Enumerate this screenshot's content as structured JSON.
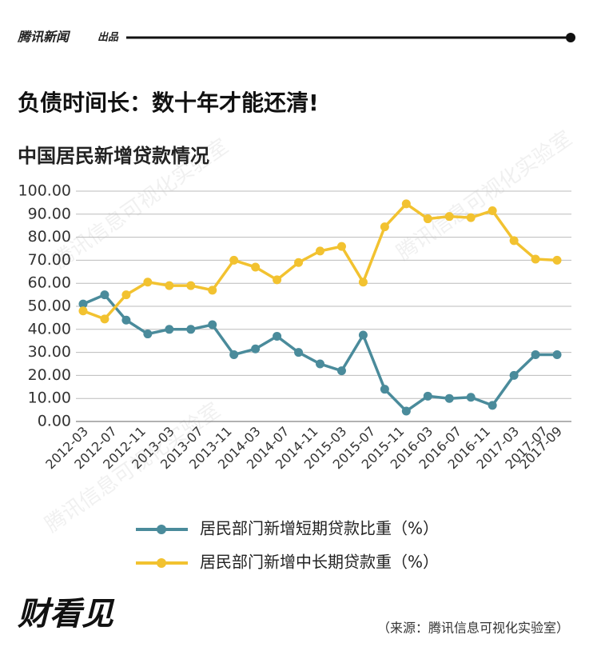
{
  "header": {
    "brand": "腾讯新闻",
    "tag": "出品"
  },
  "chart_data": {
    "type": "line",
    "title": "负债时间长：数十年才能还清!",
    "subtitle": "中国居民新增贷款情况",
    "x": [
      0,
      3,
      6,
      9,
      12,
      15,
      18,
      21,
      24,
      27,
      30,
      33,
      36,
      39,
      42,
      45,
      48,
      51,
      54,
      57,
      60,
      63,
      66
    ],
    "xlim": [
      -1,
      68
    ],
    "xticks": [
      {
        "value": 0,
        "label": "2012-03"
      },
      {
        "value": 4,
        "label": "2012-07"
      },
      {
        "value": 8,
        "label": "2012-11"
      },
      {
        "value": 12,
        "label": "2013-03"
      },
      {
        "value": 16,
        "label": "2013-07"
      },
      {
        "value": 20,
        "label": "2013-11"
      },
      {
        "value": 24,
        "label": "2014-03"
      },
      {
        "value": 28,
        "label": "2014-07"
      },
      {
        "value": 32,
        "label": "2014-11"
      },
      {
        "value": 36,
        "label": "2015-03"
      },
      {
        "value": 40,
        "label": "2015-07"
      },
      {
        "value": 44,
        "label": "2015-11"
      },
      {
        "value": 48,
        "label": "2016-03"
      },
      {
        "value": 52,
        "label": "2016-07"
      },
      {
        "value": 56,
        "label": "2016-11"
      },
      {
        "value": 60,
        "label": "2017-03"
      },
      {
        "value": 64,
        "label": "2017-07"
      },
      {
        "value": 66,
        "label": "2017-09"
      }
    ],
    "ylim": [
      0,
      100
    ],
    "yticks": [
      {
        "value": 0,
        "label": "0.00"
      },
      {
        "value": 10,
        "label": "10.00"
      },
      {
        "value": 20,
        "label": "20.00"
      },
      {
        "value": 30,
        "label": "30.00"
      },
      {
        "value": 40,
        "label": "40.00"
      },
      {
        "value": 50,
        "label": "50.00"
      },
      {
        "value": 60,
        "label": "60.00"
      },
      {
        "value": 70,
        "label": "70.00"
      },
      {
        "value": 80,
        "label": "80.00"
      },
      {
        "value": 90,
        "label": "90.00"
      },
      {
        "value": 100,
        "label": "100.00"
      }
    ],
    "grid": true,
    "series": [
      {
        "name": "居民部门新增短期贷款比重（%）",
        "color": "#4a8b9b",
        "values": [
          51,
          55,
          44,
          38,
          40,
          40,
          42,
          29,
          31.5,
          37,
          30,
          25,
          22,
          37.5,
          14,
          4.5,
          11,
          10,
          10.5,
          7,
          20,
          29,
          29
        ]
      },
      {
        "name": "居民部门新增中长期贷款重（%）",
        "color": "#f2c230",
        "values": [
          48,
          44.5,
          55,
          60.5,
          59,
          59,
          57,
          70,
          67,
          61.5,
          69,
          74,
          76,
          60.5,
          84.5,
          94.5,
          88,
          89,
          88.5,
          91.5,
          78.5,
          70.5,
          70
        ]
      }
    ]
  },
  "watermark": "腾讯信息可视化实验室",
  "footer": {
    "logo": "财看见",
    "source": "（来源：腾讯信息可视化实验室）"
  }
}
